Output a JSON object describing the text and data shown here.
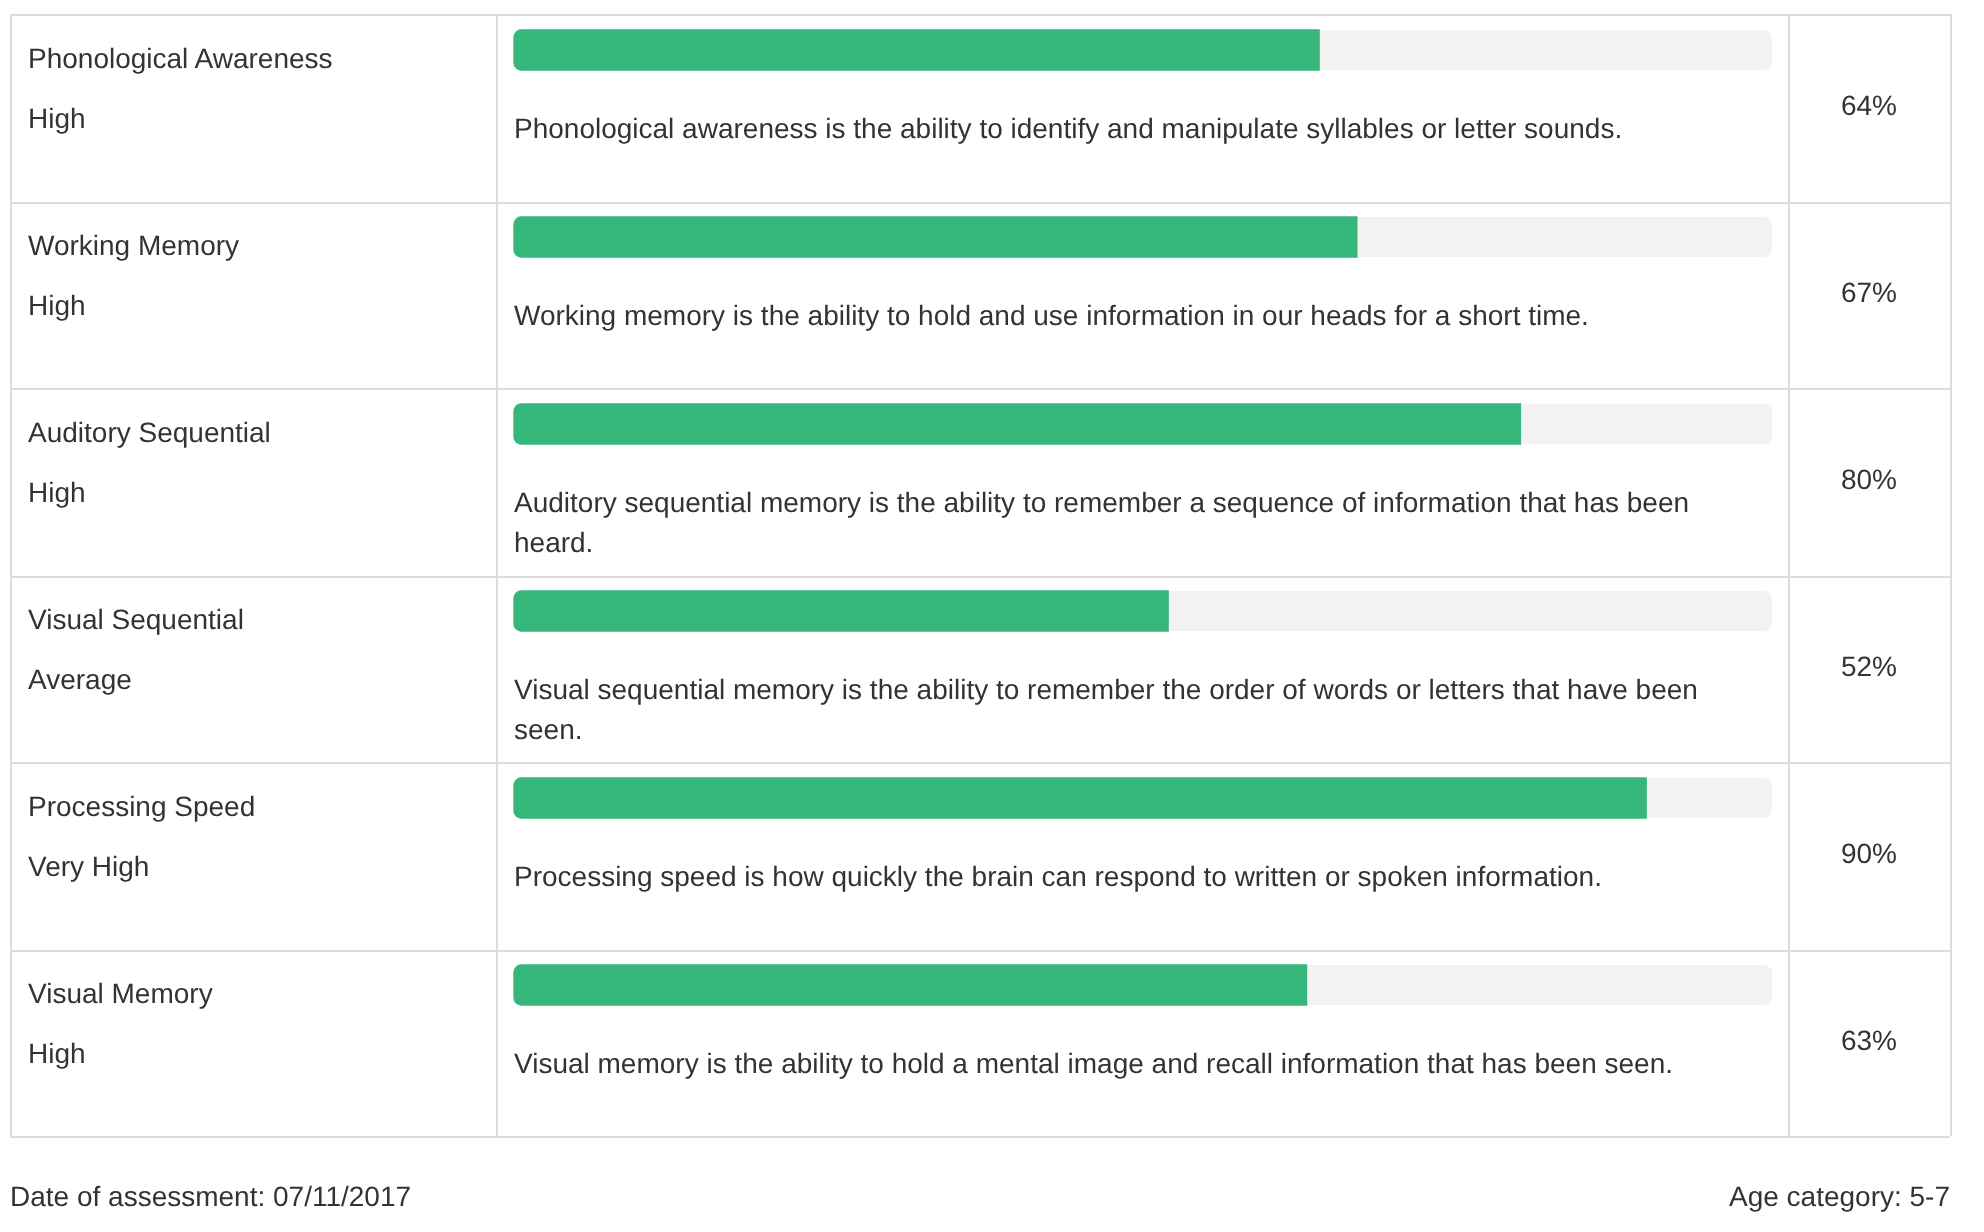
{
  "chart_data": {
    "type": "bar",
    "orientation": "horizontal",
    "categories": [
      "Phonological Awareness",
      "Working Memory",
      "Auditory Sequential",
      "Visual Sequential",
      "Processing Speed",
      "Visual Memory"
    ],
    "values": [
      64,
      67,
      80,
      52,
      90,
      63
    ],
    "value_labels": [
      "64%",
      "67%",
      "80%",
      "52%",
      "90%",
      "63%"
    ],
    "color": "#35b67a",
    "xlim": [
      0,
      100
    ],
    "tick_labels": "y",
    "legend": false,
    "annotations": [
      "High",
      "Phonological awareness is the ability to identify and manipulate syllables or letter sounds.",
      "High",
      "Working memory is the ability to hold and use information in our heads for a short time.",
      "High",
      "Auditory sequential memory is the ability to remember a sequence of information that has been heard.",
      "Average",
      "Visual sequential memory is the ability to remember the order of words or letters that have been seen.",
      "Very High",
      "Processing speed is how quickly the brain can respond to written or spoken information.",
      "High",
      "Visual memory is the ability to hold a mental image and recall information that has been seen.",
      "Date of assessment: 07/11/2017",
      "Age category: 5-7"
    ]
  }
}
